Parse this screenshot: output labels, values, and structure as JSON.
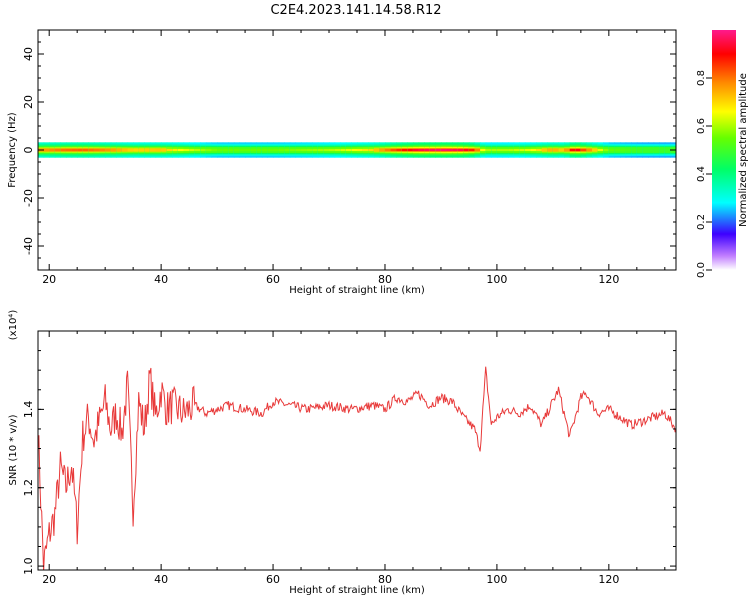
{
  "title": "C2E4.2023.141.14.58.R12",
  "colors": {
    "trace": "#e83a3a",
    "axis": "#000000",
    "background": "#ffffff"
  },
  "chart_data": [
    {
      "type": "heatmap",
      "xlabel": "Height of straight line (km)",
      "ylabel": "Frequency (Hz)",
      "xlim": [
        18,
        132
      ],
      "ylim": [
        -50,
        50
      ],
      "xticks": [
        "20",
        "40",
        "60",
        "80",
        "100",
        "120"
      ],
      "yticks": [
        "40",
        "20",
        "0",
        "-20",
        "-40"
      ],
      "grid": false,
      "colorbar": {
        "label": "Normalized spectral amplitude",
        "range": [
          0,
          1
        ],
        "ticks": [
          "0.0",
          "0.2",
          "0.4",
          "0.6",
          "0.8"
        ]
      },
      "band_center_hz": 0,
      "band_profile": {
        "km": [
          18,
          22,
          26,
          30,
          35,
          40,
          50,
          60,
          70,
          78,
          82,
          86,
          90,
          94,
          96,
          98,
          102,
          106,
          110,
          112,
          114,
          116,
          120,
          126,
          132
        ],
        "amplitude": [
          0.75,
          0.8,
          0.82,
          0.78,
          0.7,
          0.72,
          0.55,
          0.55,
          0.6,
          0.7,
          0.85,
          0.95,
          0.98,
          0.95,
          0.85,
          0.6,
          0.6,
          0.65,
          0.75,
          0.7,
          0.95,
          0.8,
          0.55,
          0.5,
          0.5
        ]
      }
    },
    {
      "type": "line",
      "xlabel": "Height of straight line (km)",
      "ylabel": "SNR (10 * v/v)",
      "y_scale_label": "(x10⁴)",
      "xlim": [
        18,
        132
      ],
      "ylim": [
        0.99,
        1.6
      ],
      "xticks": [
        "20",
        "40",
        "60",
        "80",
        "100",
        "120"
      ],
      "yticks": [
        "1.0",
        "1.2",
        "1.4"
      ],
      "grid": false,
      "series": [
        {
          "x": [
            18,
            19,
            20,
            21,
            22,
            23,
            24,
            25,
            26,
            27,
            28,
            29,
            30,
            31,
            32,
            33,
            34,
            35,
            36,
            37,
            38,
            39,
            40,
            41,
            42,
            44,
            46,
            48,
            50,
            52,
            55,
            58,
            60,
            63,
            66,
            70,
            74,
            78,
            80,
            82,
            84,
            86,
            88,
            90,
            92,
            94,
            96,
            97,
            98,
            99,
            100,
            102,
            104,
            106,
            108,
            110,
            111,
            112,
            113,
            114,
            115,
            116,
            118,
            120,
            122,
            124,
            126,
            128,
            130,
            131,
            132
          ],
          "y": [
            1.35,
            1.0,
            1.08,
            1.13,
            1.25,
            1.2,
            1.26,
            1.1,
            1.33,
            1.38,
            1.32,
            1.37,
            1.42,
            1.35,
            1.39,
            1.34,
            1.46,
            1.15,
            1.42,
            1.35,
            1.48,
            1.38,
            1.45,
            1.4,
            1.41,
            1.39,
            1.41,
            1.39,
            1.4,
            1.41,
            1.4,
            1.39,
            1.42,
            1.41,
            1.4,
            1.41,
            1.4,
            1.41,
            1.4,
            1.43,
            1.42,
            1.44,
            1.41,
            1.43,
            1.42,
            1.38,
            1.35,
            1.3,
            1.5,
            1.36,
            1.38,
            1.4,
            1.39,
            1.41,
            1.36,
            1.42,
            1.45,
            1.39,
            1.33,
            1.38,
            1.43,
            1.44,
            1.39,
            1.4,
            1.38,
            1.36,
            1.37,
            1.38,
            1.39,
            1.37,
            1.35
          ]
        }
      ]
    }
  ]
}
